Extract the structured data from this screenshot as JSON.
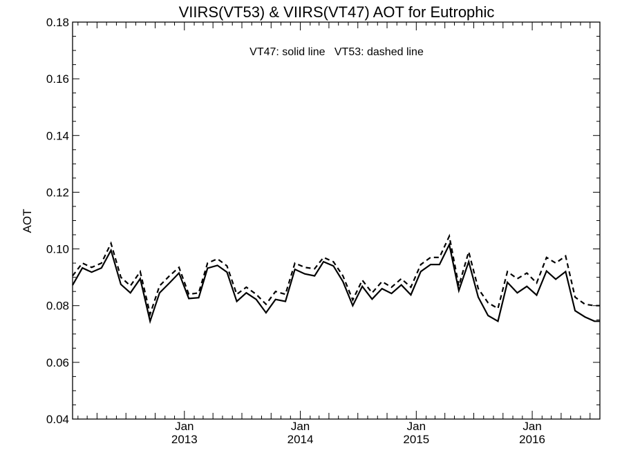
{
  "chart_data": {
    "type": "line",
    "title": "VIIRS(VT53) & VIIRS(VT47)  AOT for Eutrophic",
    "annotation": "VT47: solid line   VT53: dashed line",
    "xlabel": "",
    "ylabel": "AOT",
    "ylim": [
      0.04,
      0.18
    ],
    "xlim": [
      "2012-01-15",
      "2016-08-01"
    ],
    "yticks": [
      "0.04",
      "0.06",
      "0.08",
      "0.10",
      "0.12",
      "0.14",
      "0.16",
      "0.18"
    ],
    "xticks": [
      {
        "month": "Jan",
        "year": "2013",
        "date": "2013-01-01"
      },
      {
        "month": "Jan",
        "year": "2014",
        "date": "2014-01-01"
      },
      {
        "month": "Jan",
        "year": "2015",
        "date": "2015-01-01"
      },
      {
        "month": "Jan",
        "year": "2016",
        "date": "2016-01-01"
      }
    ],
    "x": [
      "2012-01-15",
      "2012-02-15",
      "2012-03-15",
      "2012-04-15",
      "2012-05-15",
      "2012-06-15",
      "2012-07-15",
      "2012-08-15",
      "2012-09-15",
      "2012-10-15",
      "2012-11-15",
      "2012-12-15",
      "2013-01-15",
      "2013-02-15",
      "2013-03-15",
      "2013-04-15",
      "2013-05-15",
      "2013-06-15",
      "2013-07-15",
      "2013-08-15",
      "2013-09-15",
      "2013-10-15",
      "2013-11-15",
      "2013-12-15",
      "2014-01-15",
      "2014-02-15",
      "2014-03-15",
      "2014-04-15",
      "2014-05-15",
      "2014-06-15",
      "2014-07-15",
      "2014-08-15",
      "2014-09-15",
      "2014-10-15",
      "2014-11-15",
      "2014-12-15",
      "2015-01-15",
      "2015-02-15",
      "2015-03-15",
      "2015-04-15",
      "2015-05-15",
      "2015-06-15",
      "2015-07-15",
      "2015-08-15",
      "2015-09-15",
      "2015-10-15",
      "2015-11-15",
      "2015-12-15",
      "2016-01-15",
      "2016-02-15",
      "2016-03-15",
      "2016-04-15",
      "2016-05-15",
      "2016-06-15",
      "2016-07-15",
      "2016-08-01"
    ],
    "series": [
      {
        "name": "VT47",
        "style": "solid",
        "color": "#000000",
        "values": [
          0.0872,
          0.0933,
          0.0918,
          0.0933,
          0.0995,
          0.0875,
          0.0845,
          0.0895,
          0.0745,
          0.0845,
          0.088,
          0.0915,
          0.0825,
          0.0828,
          0.0932,
          0.0942,
          0.0918,
          0.0815,
          0.0845,
          0.0822,
          0.0775,
          0.0822,
          0.0815,
          0.0928,
          0.0912,
          0.0905,
          0.0955,
          0.094,
          0.0885,
          0.08,
          0.0868,
          0.0823,
          0.086,
          0.0843,
          0.0873,
          0.0838,
          0.092,
          0.0945,
          0.0945,
          0.1015,
          0.0853,
          0.0955,
          0.083,
          0.0765,
          0.0745,
          0.0882,
          0.0845,
          0.0868,
          0.0837,
          0.0922,
          0.0893,
          0.092,
          0.0782,
          0.076,
          0.0745,
          0.0745
        ]
      },
      {
        "name": "VT53",
        "style": "dashed",
        "color": "#000000",
        "values": [
          0.0905,
          0.095,
          0.0935,
          0.095,
          0.102,
          0.09,
          0.087,
          0.092,
          0.077,
          0.087,
          0.0905,
          0.0935,
          0.084,
          0.0845,
          0.095,
          0.0965,
          0.094,
          0.084,
          0.0865,
          0.084,
          0.0805,
          0.085,
          0.084,
          0.095,
          0.0935,
          0.093,
          0.097,
          0.0955,
          0.0905,
          0.082,
          0.089,
          0.0845,
          0.0885,
          0.0865,
          0.0895,
          0.0865,
          0.0945,
          0.097,
          0.097,
          0.1045,
          0.087,
          0.099,
          0.086,
          0.081,
          0.079,
          0.092,
          0.0895,
          0.0915,
          0.088,
          0.097,
          0.095,
          0.0975,
          0.083,
          0.0805,
          0.08,
          0.08
        ]
      }
    ],
    "grid": false,
    "legend": "none"
  }
}
